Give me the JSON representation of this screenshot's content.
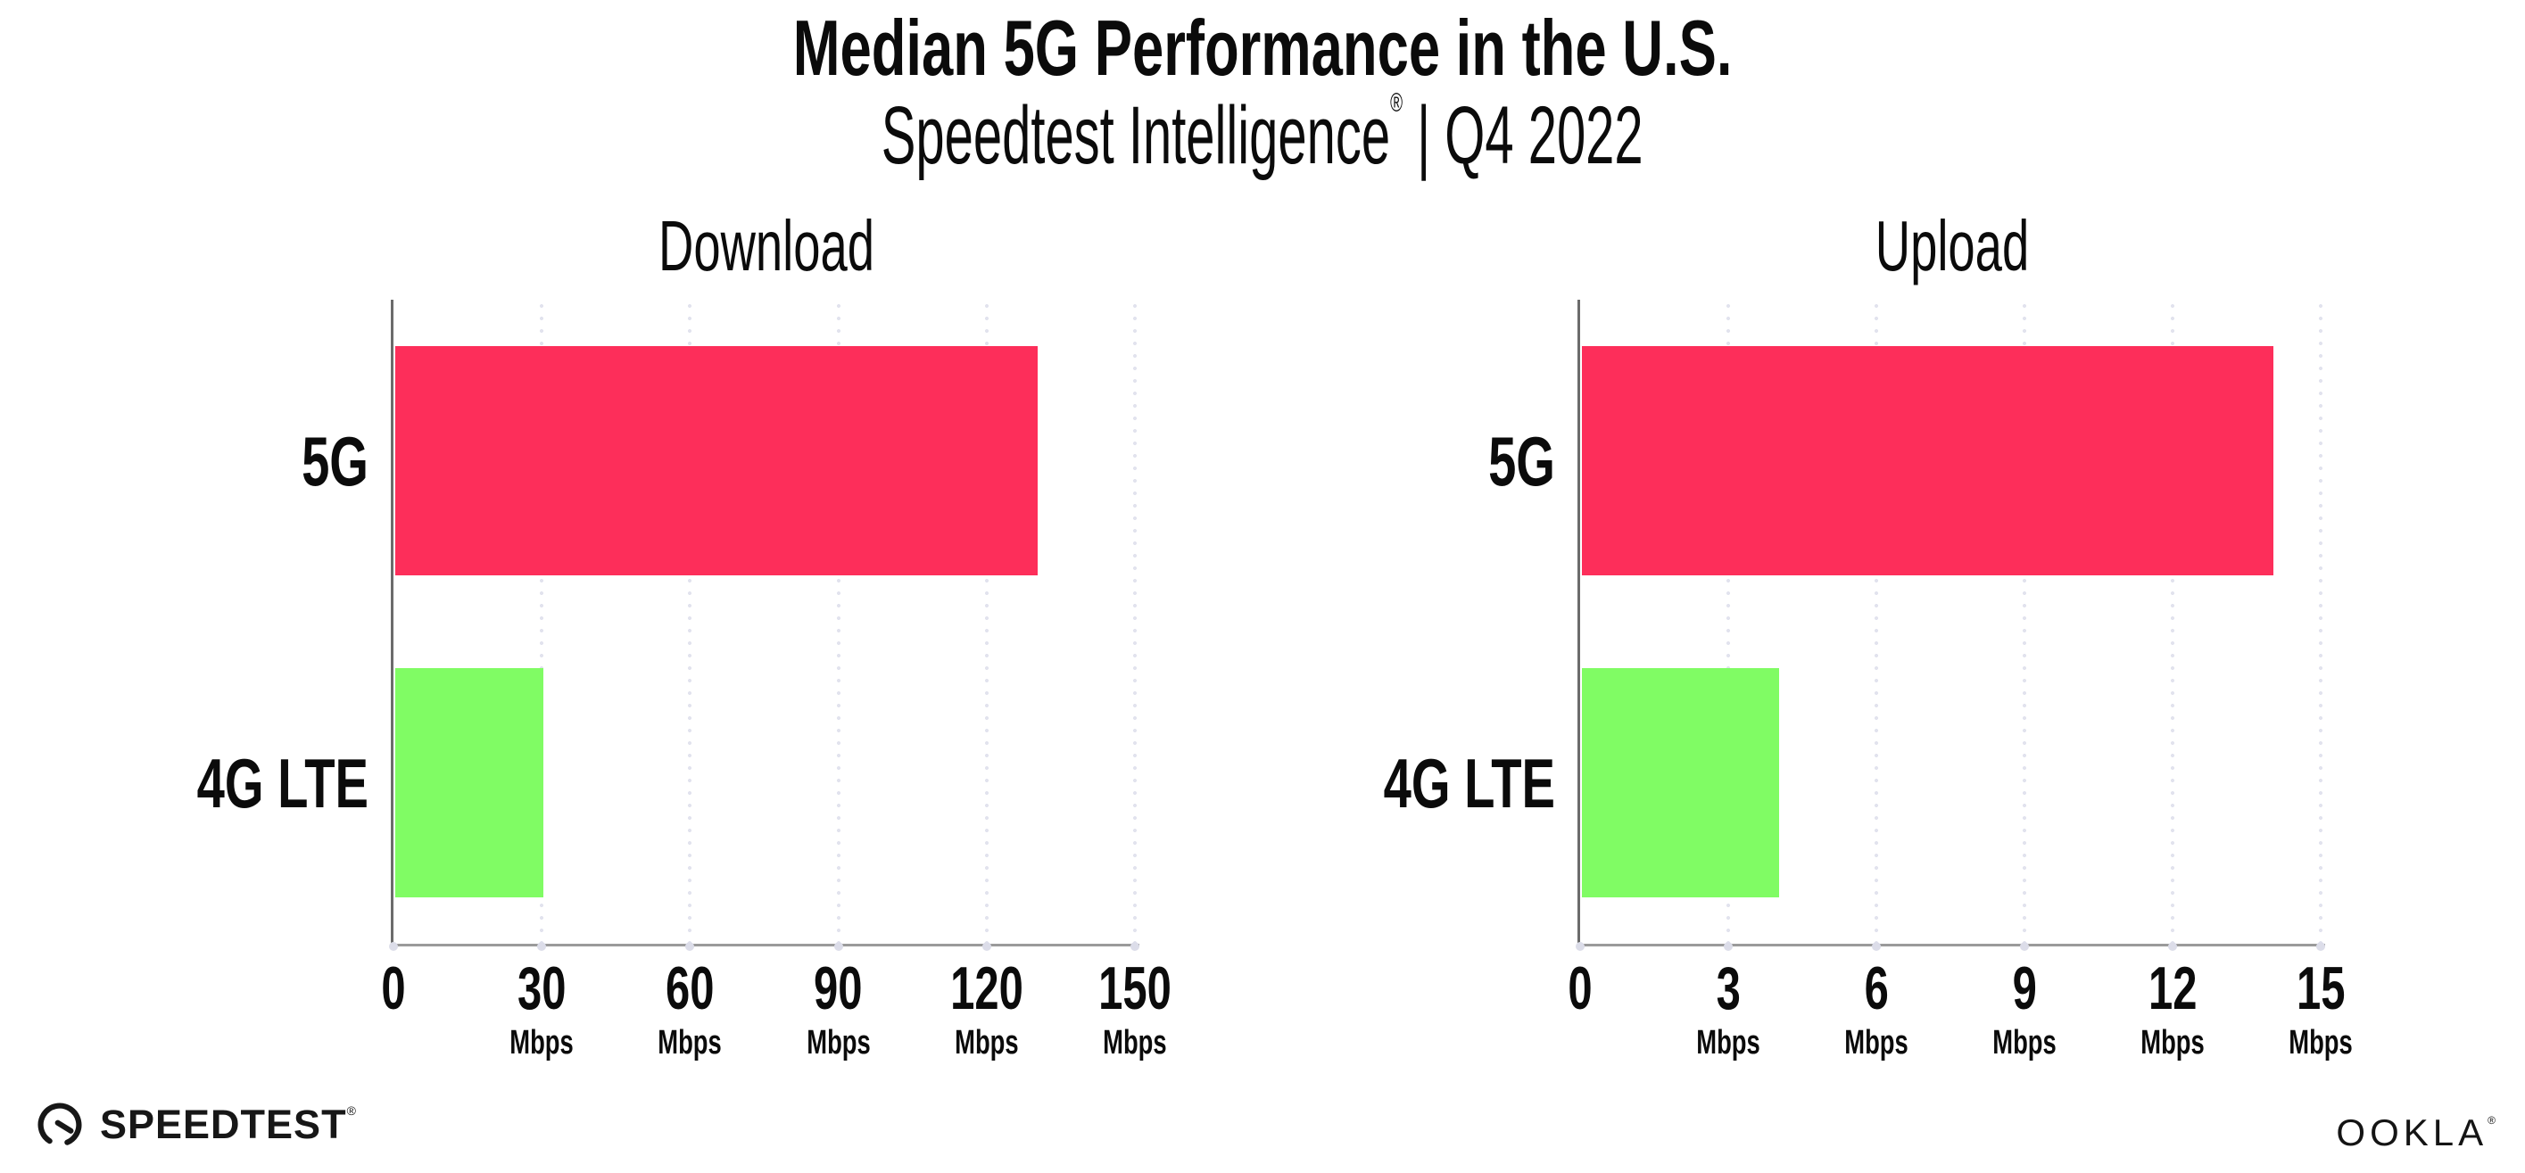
{
  "header": {
    "title": "Median 5G Performance in the U.S.",
    "subtitle_brand": "Speedtest Intelligence",
    "subtitle_reg": "®",
    "subtitle_rest": "| Q4 2022"
  },
  "chart_data": [
    {
      "type": "bar",
      "orientation": "horizontal",
      "title": "Download",
      "categories": [
        "5G",
        "4G LTE"
      ],
      "values": [
        130,
        30
      ],
      "value_unit": "Mbps",
      "xlim": [
        0,
        150
      ],
      "xticks": [
        0,
        30,
        60,
        90,
        120,
        150
      ],
      "xtick_unit_label": "Mbps",
      "bar_colors": [
        "#fd2e5a",
        "#80fc64"
      ],
      "grid": "vertical-dotted",
      "legend_position": "none"
    },
    {
      "type": "bar",
      "orientation": "horizontal",
      "title": "Upload",
      "categories": [
        "5G",
        "4G LTE"
      ],
      "values": [
        14,
        4
      ],
      "value_unit": "Mbps",
      "xlim": [
        0,
        15
      ],
      "xticks": [
        0,
        3,
        6,
        9,
        12,
        15
      ],
      "xtick_unit_label": "Mbps",
      "bar_colors": [
        "#fd2e5a",
        "#80fc64"
      ],
      "grid": "vertical-dotted",
      "legend_position": "none"
    }
  ],
  "footer": {
    "speedtest_logo_text": "SPEEDTEST",
    "speedtest_reg": "®",
    "ookla_logo_text": "OOKLA",
    "ookla_reg": "®"
  },
  "colors": {
    "bar_5g": "#fd2e5a",
    "bar_4g_lte": "#80fc64",
    "gridline": "#e2e3ee",
    "x_axis": "#9b9b9b",
    "y_axis": "#6b6b6b",
    "text": "#0b0b0b"
  }
}
